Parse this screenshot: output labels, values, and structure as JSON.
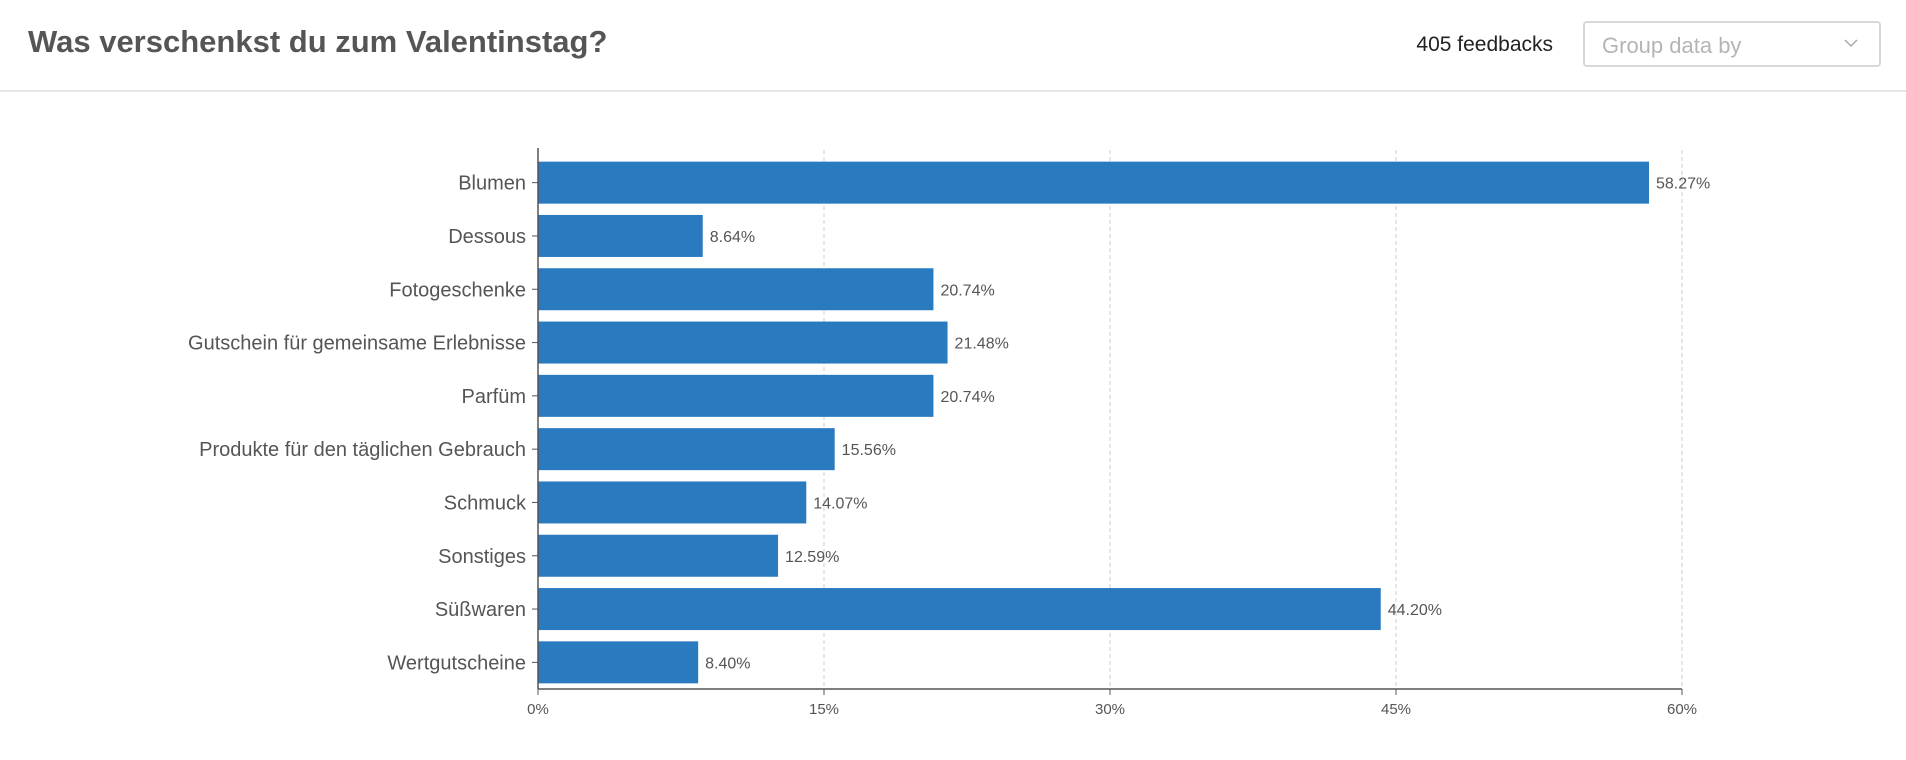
{
  "header": {
    "title": "Was verschenkst du zum Valentinstag?",
    "feedback_count": "405 feedbacks",
    "group_select": {
      "placeholder": "Group data by",
      "icon": "chevron-down-icon"
    }
  },
  "colors": {
    "bar": "#2a7abf",
    "grid": "#cccccc",
    "axis": "#555555",
    "text": "#555555"
  },
  "chart_data": {
    "type": "bar",
    "orientation": "horizontal",
    "categories": [
      "Blumen",
      "Dessous",
      "Fotogeschenke",
      "Gutschein für gemeinsame Erlebnisse",
      "Parfüm",
      "Produkte für den täglichen Gebrauch",
      "Schmuck",
      "Sonstiges",
      "Süßwaren",
      "Wertgutscheine"
    ],
    "values": [
      58.27,
      8.64,
      20.74,
      21.48,
      20.74,
      15.56,
      14.07,
      12.59,
      44.2,
      8.4
    ],
    "value_labels": [
      "58.27%",
      "8.64%",
      "20.74%",
      "21.48%",
      "20.74%",
      "15.56%",
      "14.07%",
      "12.59%",
      "44.20%",
      "8.40%"
    ],
    "xlim": [
      0,
      60
    ],
    "xticks": [
      0,
      15,
      30,
      45,
      60
    ],
    "xtick_labels": [
      "0%",
      "15%",
      "30%",
      "45%",
      "60%"
    ],
    "grid": "vertical dashed",
    "legend": "none"
  }
}
